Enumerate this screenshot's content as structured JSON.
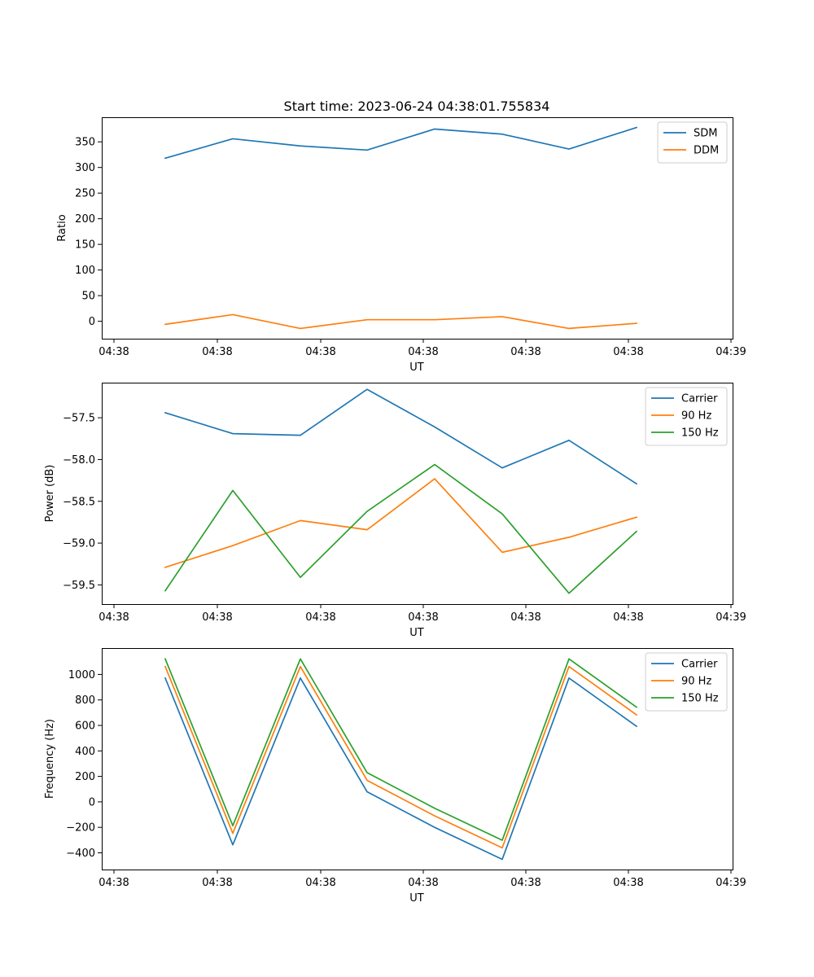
{
  "title": "Start time: 2023-06-24 04:38:01.755834",
  "chart_data": [
    {
      "type": "line",
      "xlabel": "UT",
      "ylabel": "Ratio",
      "x_tick_labels": [
        "04:38",
        "04:38",
        "04:38",
        "04:38",
        "04:38",
        "04:38",
        "04:38",
        "04:39"
      ],
      "y_ticks": [
        0,
        50,
        100,
        150,
        200,
        250,
        300,
        350
      ],
      "ylim": [
        -34,
        398
      ],
      "legend_position": "top-right",
      "grid": false,
      "series": [
        {
          "name": "SDM",
          "color": "#1f77b4",
          "values": [
            318,
            356,
            342,
            334,
            375,
            365,
            336,
            378
          ]
        },
        {
          "name": "DDM",
          "color": "#ff7f0e",
          "values": [
            -6,
            13,
            -14,
            3,
            3,
            9,
            -14,
            -4
          ]
        }
      ]
    },
    {
      "type": "line",
      "xlabel": "UT",
      "ylabel": "Power (dB)",
      "x_tick_labels": [
        "04:38",
        "04:38",
        "04:38",
        "04:38",
        "04:38",
        "04:38",
        "04:38",
        "04:39"
      ],
      "y_ticks": [
        -57.5,
        -58.0,
        -58.5,
        -59.0,
        -59.5
      ],
      "y_tick_labels": [
        "−57.5",
        "−58.0",
        "−58.5",
        "−59.0",
        "−59.5"
      ],
      "ylim": [
        -59.73,
        -57.08
      ],
      "legend_position": "top-right",
      "grid": false,
      "series": [
        {
          "name": "Carrier",
          "color": "#1f77b4",
          "values": [
            -57.44,
            -57.69,
            -57.71,
            -57.16,
            -57.61,
            -58.1,
            -57.77,
            -58.29
          ]
        },
        {
          "name": "90 Hz",
          "color": "#ff7f0e",
          "values": [
            -59.29,
            -59.03,
            -58.73,
            -58.84,
            -58.23,
            -59.11,
            -58.93,
            -58.69
          ]
        },
        {
          "name": "150 Hz",
          "color": "#2ca02c",
          "values": [
            -59.57,
            -58.37,
            -59.41,
            -58.62,
            -58.06,
            -58.65,
            -59.6,
            -58.86
          ]
        }
      ]
    },
    {
      "type": "line",
      "xlabel": "UT",
      "ylabel": "Frequency (Hz)",
      "x_tick_labels": [
        "04:38",
        "04:38",
        "04:38",
        "04:38",
        "04:38",
        "04:38",
        "04:38",
        "04:39"
      ],
      "y_ticks": [
        -400,
        -200,
        0,
        200,
        400,
        600,
        800,
        1000
      ],
      "y_tick_labels": [
        "−400",
        "−200",
        "0",
        "200",
        "400",
        "600",
        "800",
        "1000"
      ],
      "ylim": [
        -531,
        1207
      ],
      "legend_position": "top-right",
      "grid": false,
      "series": [
        {
          "name": "Carrier",
          "color": "#1f77b4",
          "values": [
            972,
            -337,
            972,
            79,
            -200,
            -451,
            972,
            593
          ]
        },
        {
          "name": "90 Hz",
          "color": "#ff7f0e",
          "values": [
            1062,
            -247,
            1062,
            169,
            -110,
            -361,
            1062,
            683
          ]
        },
        {
          "name": "150 Hz",
          "color": "#2ca02c",
          "values": [
            1122,
            -187,
            1122,
            229,
            -50,
            -301,
            1122,
            743
          ]
        }
      ]
    }
  ]
}
